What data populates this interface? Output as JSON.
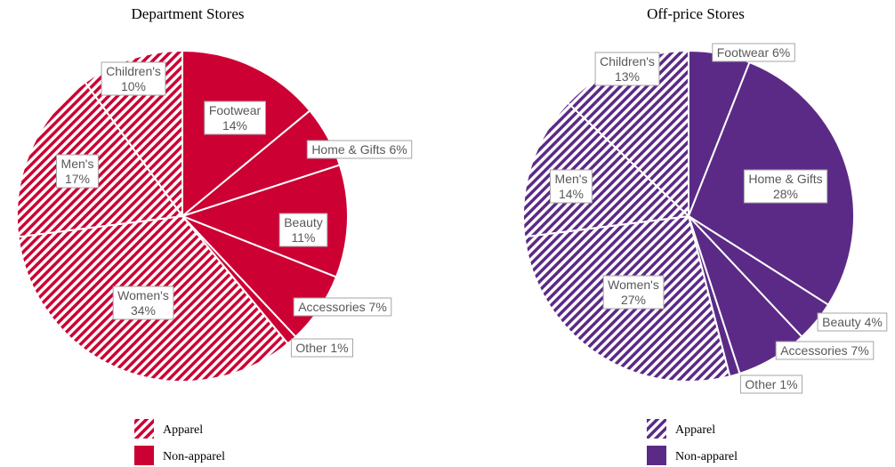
{
  "chart_data": [
    {
      "type": "pie",
      "title": "Department Stores",
      "color": "#cc0033",
      "slices": [
        {
          "label": "Footwear",
          "value": 14,
          "text": "14%",
          "kind": "non-apparel"
        },
        {
          "label": "Home & Gifts",
          "value": 6,
          "text": "6%",
          "kind": "non-apparel"
        },
        {
          "label": "Beauty",
          "value": 11,
          "text": "11%",
          "kind": "non-apparel"
        },
        {
          "label": "Accessories",
          "value": 7,
          "text": "7%",
          "kind": "non-apparel"
        },
        {
          "label": "Other",
          "value": 1,
          "text": "1%",
          "kind": "non-apparel"
        },
        {
          "label": "Women's",
          "value": 34,
          "text": "34%",
          "kind": "apparel"
        },
        {
          "label": "Men's",
          "value": 17,
          "text": "17%",
          "kind": "apparel"
        },
        {
          "label": "Children's",
          "value": 10,
          "text": "10%",
          "kind": "apparel"
        }
      ],
      "legend": [
        {
          "label": "Apparel",
          "kind": "apparel"
        },
        {
          "label": "Non-apparel",
          "kind": "non-apparel"
        }
      ]
    },
    {
      "type": "pie",
      "title": "Off-price Stores",
      "color": "#5b2a86",
      "slices": [
        {
          "label": "Footwear",
          "value": 6,
          "text": "6%",
          "kind": "non-apparel"
        },
        {
          "label": "Home & Gifts",
          "value": 28,
          "text": "28%",
          "kind": "non-apparel"
        },
        {
          "label": "Beauty",
          "value": 4,
          "text": "4%",
          "kind": "non-apparel"
        },
        {
          "label": "Accessories",
          "value": 7,
          "text": "7%",
          "kind": "non-apparel"
        },
        {
          "label": "Other",
          "value": 1,
          "text": "1%",
          "kind": "non-apparel"
        },
        {
          "label": "Women's",
          "value": 27,
          "text": "27%",
          "kind": "apparel"
        },
        {
          "label": "Men's",
          "value": 14,
          "text": "14%",
          "kind": "apparel"
        },
        {
          "label": "Children's",
          "value": 13,
          "text": "13%",
          "kind": "apparel"
        }
      ],
      "legend": [
        {
          "label": "Apparel",
          "kind": "apparel"
        },
        {
          "label": "Non-apparel",
          "kind": "non-apparel"
        }
      ]
    }
  ]
}
